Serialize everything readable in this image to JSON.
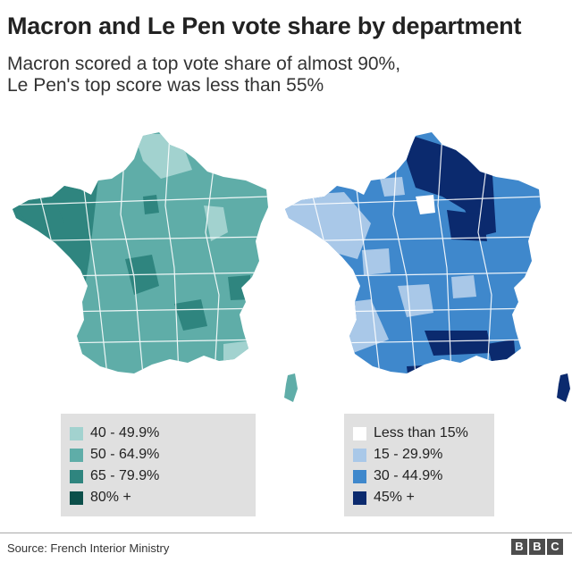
{
  "title": "Macron and Le Pen vote share by department",
  "subtitle_line1": "Macron scored a top vote share of almost 90%,",
  "subtitle_line2": "Le Pen's top score was less than 55%",
  "macron_legend": {
    "items": [
      {
        "label": "40 - 49.9%",
        "color": "#a2d2cf"
      },
      {
        "label": "50 - 64.9%",
        "color": "#5fada8"
      },
      {
        "label": "65 - 79.9%",
        "color": "#2f857f"
      },
      {
        "label": "80% +",
        "color": "#0c4f4a"
      }
    ]
  },
  "lepen_legend": {
    "items": [
      {
        "label": "Less than 15%",
        "color": "#ffffff"
      },
      {
        "label": "15 - 29.9%",
        "color": "#a9c8e8"
      },
      {
        "label": "30 - 44.9%",
        "color": "#3f88cc"
      },
      {
        "label": "45% +",
        "color": "#0b2a6e"
      }
    ]
  },
  "source": "Source: French Interior Ministry",
  "logo": "BBC"
}
